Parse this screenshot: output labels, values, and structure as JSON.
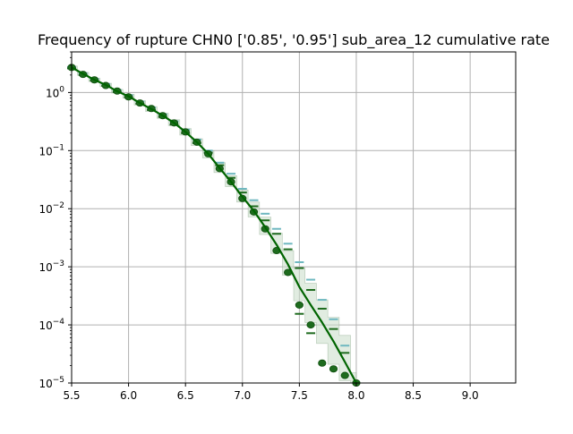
{
  "chart_data": {
    "type": "line",
    "title": "Frequency of rupture CHN0 ['0.85', '0.95'] sub_area_12 cumulative rate",
    "xlabel": "",
    "ylabel": "",
    "xlim": [
      5.5,
      9.4
    ],
    "ylim": [
      1e-05,
      5
    ],
    "yscale": "log",
    "grid": true,
    "x_ticks": [
      5.5,
      6.0,
      6.5,
      7.0,
      7.5,
      8.0,
      8.5,
      9.0
    ],
    "x_tick_labels": [
      "5.5",
      "6.0",
      "6.5",
      "7.0",
      "7.5",
      "8.0",
      "8.5",
      "9.0"
    ],
    "y_ticks": [
      1e-05,
      0.0001,
      0.001,
      0.01,
      0.1,
      1
    ],
    "y_tick_labels": [
      {
        "base": "10",
        "exp": "−5"
      },
      {
        "base": "10",
        "exp": "−4"
      },
      {
        "base": "10",
        "exp": "−3"
      },
      {
        "base": "10",
        "exp": "−2"
      },
      {
        "base": "10",
        "exp": "−1"
      },
      {
        "base": "10",
        "exp": "0"
      }
    ],
    "colors": {
      "model_line": "#006400",
      "band_fill": "#c8dcc8",
      "dark_marker": "#1e6b1e",
      "light_marker": "#6fb8c0",
      "grid": "#b0b0b0"
    },
    "model_line": {
      "x": [
        5.5,
        5.6,
        5.7,
        5.8,
        5.9,
        6.0,
        6.1,
        6.2,
        6.3,
        6.4,
        6.5,
        6.6,
        6.7,
        6.8,
        6.9,
        7.0,
        7.1,
        7.2,
        7.3,
        7.4,
        7.5,
        7.6,
        7.7,
        7.8,
        7.9,
        8.0
      ],
      "y": [
        2.7,
        2.1,
        1.65,
        1.35,
        1.05,
        0.86,
        0.66,
        0.52,
        0.4,
        0.3,
        0.21,
        0.14,
        0.088,
        0.05,
        0.029,
        0.016,
        0.0092,
        0.0048,
        0.0024,
        0.0011,
        0.00045,
        0.00022,
        0.00011,
        5.2e-05,
        2.3e-05,
        1e-05
      ]
    },
    "band": {
      "x": [
        5.5,
        5.6,
        5.7,
        5.8,
        5.9,
        6.0,
        6.1,
        6.2,
        6.3,
        6.4,
        6.5,
        6.6,
        6.7,
        6.8,
        6.9,
        7.0,
        7.1,
        7.2,
        7.3,
        7.4,
        7.5,
        7.6,
        7.7,
        7.8,
        7.9,
        8.0
      ],
      "lower": [
        2.55,
        1.98,
        1.55,
        1.26,
        0.98,
        0.8,
        0.61,
        0.47,
        0.36,
        0.27,
        0.185,
        0.122,
        0.075,
        0.042,
        0.024,
        0.013,
        0.0072,
        0.0036,
        0.0017,
        0.00072,
        0.00026,
        0.00011,
        4.8e-05,
        2.1e-05,
        1.1e-05,
        1e-05
      ],
      "upper": [
        2.85,
        2.22,
        1.75,
        1.44,
        1.13,
        0.93,
        0.72,
        0.57,
        0.44,
        0.34,
        0.24,
        0.16,
        0.1,
        0.062,
        0.037,
        0.021,
        0.013,
        0.0072,
        0.0038,
        0.0019,
        0.00095,
        0.00052,
        0.00027,
        0.000135,
        6.6e-05,
        1.5e-05
      ]
    },
    "observed_points": {
      "x": [
        5.5,
        5.6,
        5.7,
        5.8,
        5.9,
        6.0,
        6.1,
        6.2,
        6.3,
        6.4,
        6.5,
        6.6,
        6.7,
        6.8,
        6.9,
        7.0,
        7.1,
        7.2,
        7.3,
        7.4,
        7.5,
        7.6,
        7.7,
        7.8,
        7.9,
        8.0
      ],
      "y": [
        2.7,
        2.05,
        1.65,
        1.32,
        1.06,
        0.84,
        0.66,
        0.53,
        0.4,
        0.3,
        0.21,
        0.14,
        0.088,
        0.049,
        0.029,
        0.015,
        0.0088,
        0.0045,
        0.0019,
        0.0008,
        0.00022,
        0.0001,
        2.2e-05,
        1.75e-05,
        1.35e-05,
        1e-05
      ]
    },
    "dark_dashes": {
      "x": [
        5.5,
        5.6,
        5.7,
        5.8,
        5.9,
        6.0,
        6.1,
        6.2,
        6.3,
        6.4,
        6.5,
        6.6,
        6.7,
        6.8,
        6.9,
        7.0,
        7.1,
        7.2,
        7.3,
        7.4,
        7.5,
        7.6,
        7.7,
        7.8,
        7.9
      ],
      "y": [
        2.6,
        2.0,
        1.6,
        1.3,
        1.02,
        0.83,
        0.64,
        0.5,
        0.38,
        0.28,
        0.2,
        0.135,
        0.092,
        0.056,
        0.034,
        0.019,
        0.011,
        0.0063,
        0.0037,
        0.002,
        0.00095,
        0.0004,
        0.00019,
        8.5e-05,
        3.3e-05
      ]
    },
    "light_dashes": {
      "x": [
        5.5,
        5.6,
        5.7,
        5.8,
        5.9,
        6.0,
        6.1,
        6.2,
        6.3,
        6.4,
        6.5,
        6.6,
        6.7,
        6.8,
        6.9,
        7.0,
        7.1,
        7.2,
        7.3,
        7.4,
        7.5,
        7.6,
        7.7,
        7.8,
        7.9
      ],
      "y": [
        2.75,
        2.15,
        1.72,
        1.4,
        1.1,
        0.9,
        0.7,
        0.55,
        0.42,
        0.32,
        0.23,
        0.155,
        0.1,
        0.062,
        0.04,
        0.022,
        0.014,
        0.0082,
        0.0045,
        0.0025,
        0.0012,
        0.0006,
        0.00027,
        0.000125,
        4.4e-05
      ]
    },
    "lower_dashes": {
      "x": [
        7.5,
        7.6
      ],
      "y": [
        0.000155,
        7.2e-05
      ]
    }
  }
}
